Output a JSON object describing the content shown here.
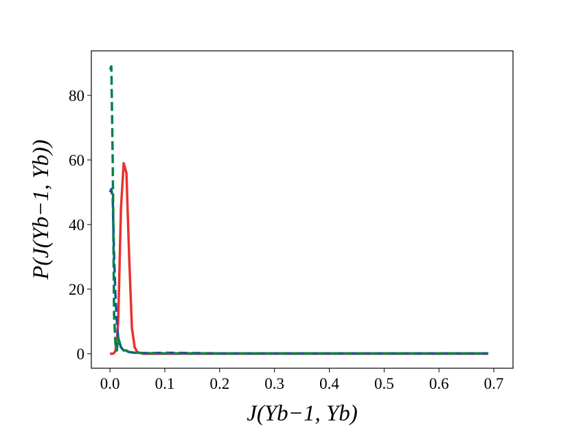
{
  "chart_data": {
    "type": "line",
    "xlabel": "J(Yb−1, Yb)",
    "ylabel": "P(J(Yb−1, Yb))",
    "x": [
      0,
      0.0025,
      0.005,
      0.0075,
      0.01,
      0.0125,
      0.015,
      0.02,
      0.025,
      0.03,
      0.035,
      0.04,
      0.045,
      0.05,
      0.06,
      0.08,
      0.1,
      0.2,
      0.3,
      0.4,
      0.5,
      0.6,
      0.69
    ],
    "series": [
      {
        "color": "#e8312f",
        "linestyle": "solid",
        "values": [
          0,
          0,
          0,
          0.2,
          1,
          4,
          10,
          45,
          59,
          56,
          30,
          8,
          2,
          0.5,
          0,
          0,
          0,
          0,
          0,
          0,
          0,
          0,
          0
        ]
      },
      {
        "color": "#1f4fa0",
        "linestyle": "dashed",
        "values": [
          50,
          51,
          48,
          30,
          18,
          10,
          5,
          2,
          1,
          0.8,
          0.5,
          0.4,
          0.3,
          0.3,
          0.2,
          0.2,
          0.3,
          0.1,
          0.1,
          0.1,
          0.1,
          0.1,
          0.1
        ]
      },
      {
        "color": "#00814a",
        "linestyle": "dashed",
        "values": [
          88,
          89,
          60,
          12,
          3,
          1,
          5,
          2,
          1,
          1,
          0.5,
          0.5,
          0.3,
          0.3,
          0.2,
          0.1,
          0.1,
          0.1,
          0.1,
          0.1,
          0.1,
          0.1,
          0.1
        ]
      }
    ],
    "xlim": [
      -0.034,
      0.735
    ],
    "ylim": [
      -4.5,
      93.8
    ],
    "xticks": [
      {
        "value": 0,
        "label": "0.0"
      },
      0.1,
      0.2,
      0.3,
      0.4,
      0.5,
      0.6,
      0.7
    ],
    "yticks": [
      0,
      20,
      40,
      60,
      80
    ],
    "grid": false
  }
}
